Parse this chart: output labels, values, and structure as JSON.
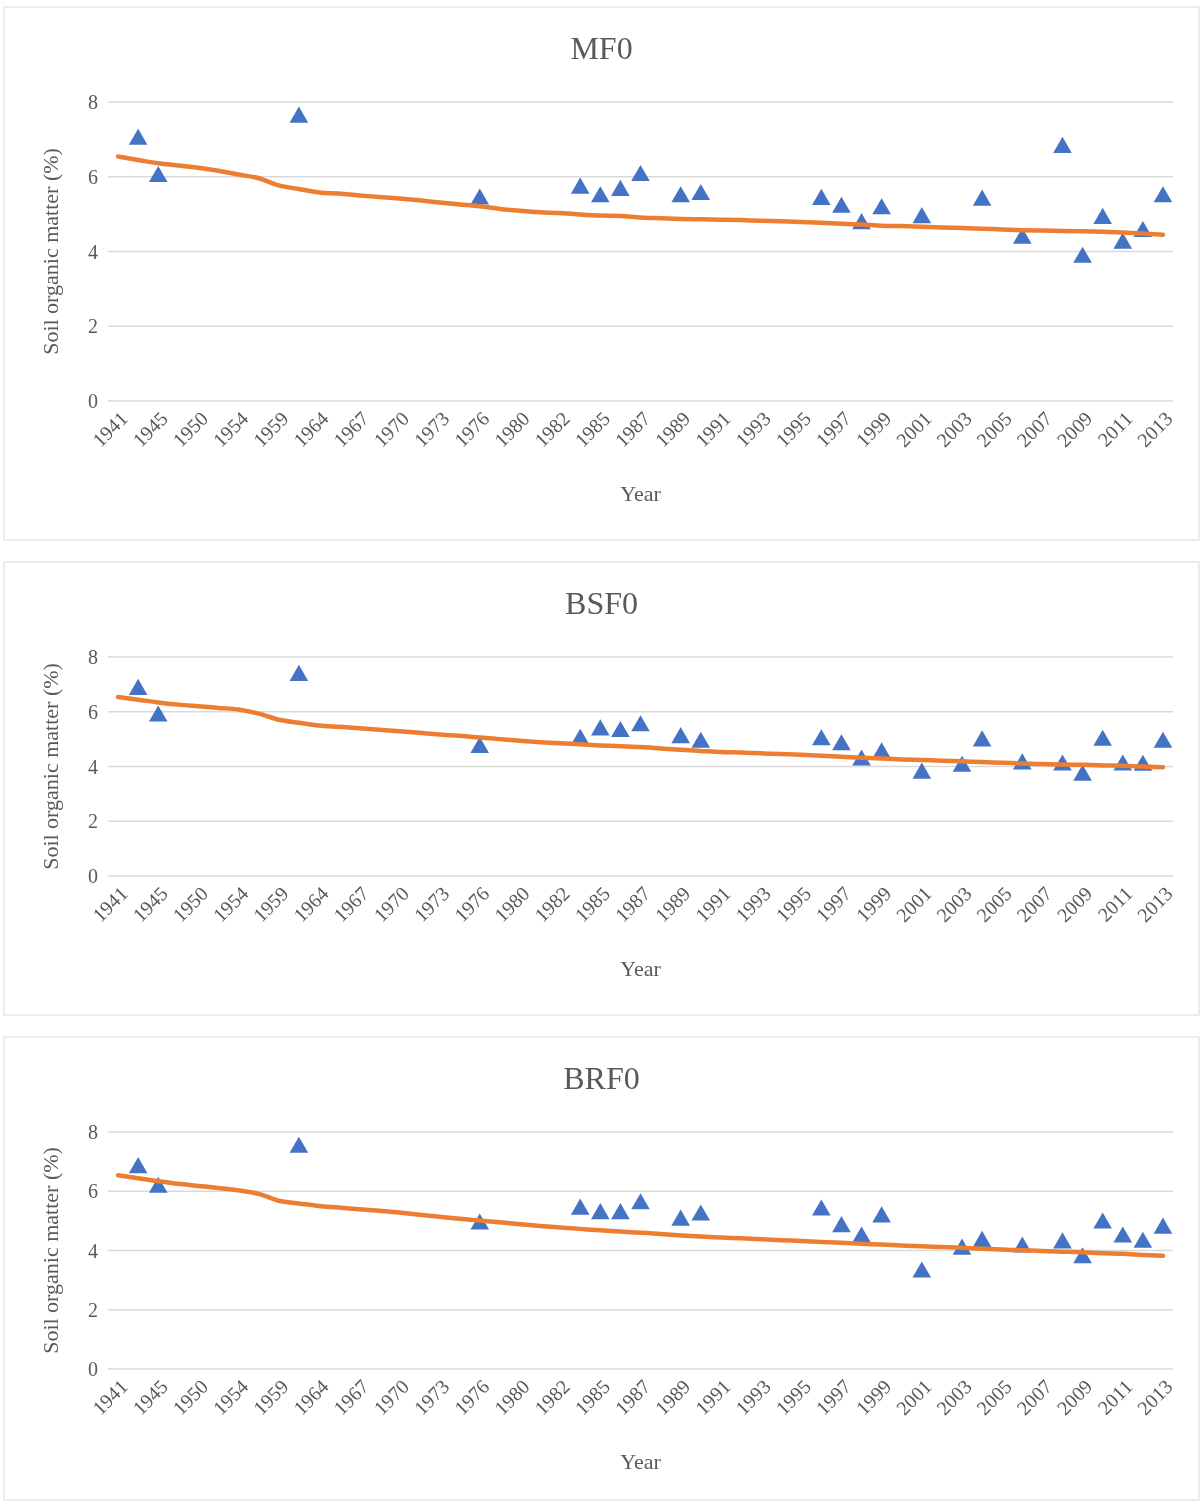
{
  "chart_data": [
    {
      "type": "line",
      "title": "MF0",
      "xlabel": "Year",
      "ylabel": "Soil organic matter (%)",
      "categories": [
        "1941",
        null,
        "1945",
        null,
        "1950",
        null,
        "1954",
        null,
        "1959",
        null,
        "1964",
        null,
        "1967",
        null,
        "1970",
        null,
        "1973",
        null,
        "1976",
        null,
        "1980",
        null,
        "1982",
        null,
        "1985",
        null,
        "1987",
        null,
        "1989",
        null,
        "1991",
        null,
        "1993",
        null,
        "1995",
        null,
        "1997",
        null,
        "1999",
        null,
        "2001",
        null,
        "2003",
        null,
        "2005",
        null,
        "2007",
        null,
        "2009",
        null,
        "2011",
        null,
        "2013"
      ],
      "ylim": [
        0,
        8
      ],
      "yticks": [
        0,
        2,
        4,
        6,
        8
      ],
      "grid": "y",
      "series": [
        {
          "color": "#ed7d31",
          "marker": "none",
          "values": [
            6.54,
            6.45,
            6.36,
            6.3,
            6.24,
            6.16,
            6.06,
            5.96,
            5.77,
            5.67,
            5.58,
            5.55,
            5.5,
            5.46,
            5.42,
            5.37,
            5.31,
            5.26,
            5.21,
            5.14,
            5.09,
            5.05,
            5.03,
            4.99,
            4.96,
            4.95,
            4.91,
            4.89,
            4.87,
            4.86,
            4.85,
            4.84,
            4.82,
            4.81,
            4.79,
            4.77,
            4.74,
            4.72,
            4.69,
            4.68,
            4.66,
            4.64,
            4.63,
            4.61,
            4.59,
            4.57,
            4.56,
            4.55,
            4.54,
            4.53,
            4.51,
            4.48,
            4.45
          ]
        },
        {
          "type": "scatter",
          "color": "#4472c4",
          "marker": "triangle",
          "values": [
            null,
            7.0,
            6.0,
            null,
            null,
            null,
            null,
            null,
            null,
            7.59,
            null,
            null,
            null,
            null,
            null,
            null,
            null,
            null,
            5.4,
            null,
            null,
            null,
            null,
            5.69,
            5.46,
            5.63,
            6.03,
            null,
            5.46,
            5.52,
            null,
            null,
            null,
            null,
            null,
            5.39,
            5.18,
            4.74,
            5.14,
            null,
            4.9,
            null,
            null,
            5.37,
            null,
            4.35,
            null,
            6.78,
            3.84,
            4.88,
            4.22,
            4.53,
            5.46
          ]
        }
      ]
    },
    {
      "type": "line",
      "title": "BSF0",
      "xlabel": "Year",
      "ylabel": "Soil organic matter (%)",
      "categories": [
        "1941",
        null,
        "1945",
        null,
        "1950",
        null,
        "1954",
        null,
        "1959",
        null,
        "1964",
        null,
        "1967",
        null,
        "1970",
        null,
        "1973",
        null,
        "1976",
        null,
        "1980",
        null,
        "1982",
        null,
        "1985",
        null,
        "1987",
        null,
        "1989",
        null,
        "1991",
        null,
        "1993",
        null,
        "1995",
        null,
        "1997",
        null,
        "1999",
        null,
        "2001",
        null,
        "2003",
        null,
        "2005",
        null,
        "2007",
        null,
        "2009",
        null,
        "2011",
        null,
        "2013"
      ],
      "ylim": [
        0,
        8
      ],
      "yticks": [
        0,
        2,
        4,
        6,
        8
      ],
      "grid": "y",
      "series": [
        {
          "color": "#ed7d31",
          "marker": "none",
          "values": [
            6.54,
            6.44,
            6.34,
            6.26,
            6.2,
            6.14,
            6.08,
            5.93,
            5.71,
            5.6,
            5.5,
            5.45,
            5.4,
            5.34,
            5.29,
            5.23,
            5.17,
            5.12,
            5.06,
            5.0,
            4.94,
            4.89,
            4.85,
            4.81,
            4.77,
            4.74,
            4.71,
            4.66,
            4.61,
            4.57,
            4.53,
            4.51,
            4.48,
            4.46,
            4.43,
            4.39,
            4.36,
            4.32,
            4.29,
            4.26,
            4.24,
            4.21,
            4.19,
            4.16,
            4.14,
            4.11,
            4.09,
            4.07,
            4.06,
            4.04,
            4.03,
            4.0,
            3.97
          ]
        },
        {
          "type": "scatter",
          "color": "#4472c4",
          "marker": "triangle",
          "values": [
            null,
            6.81,
            5.84,
            null,
            null,
            null,
            null,
            null,
            null,
            7.32,
            null,
            null,
            null,
            null,
            null,
            null,
            null,
            null,
            4.69,
            null,
            null,
            null,
            null,
            4.99,
            5.33,
            5.27,
            5.48,
            null,
            5.05,
            4.88,
            null,
            null,
            null,
            null,
            null,
            4.97,
            4.79,
            4.23,
            4.49,
            null,
            3.75,
            null,
            4.0,
            4.93,
            null,
            4.09,
            null,
            4.05,
            3.68,
            4.95,
            4.05,
            4.04,
            4.88
          ]
        }
      ]
    },
    {
      "type": "line",
      "title": "BRF0",
      "xlabel": "Year",
      "ylabel": "Soil organic matter (%)",
      "categories": [
        "1941",
        null,
        "1945",
        null,
        "1950",
        null,
        "1954",
        null,
        "1959",
        null,
        "1964",
        null,
        "1967",
        null,
        "1970",
        null,
        "1973",
        null,
        "1976",
        null,
        "1980",
        null,
        "1982",
        null,
        "1985",
        null,
        "1987",
        null,
        "1989",
        null,
        "1991",
        null,
        "1993",
        null,
        "1995",
        null,
        "1997",
        null,
        "1999",
        null,
        "2001",
        null,
        "2003",
        null,
        "2005",
        null,
        "2007",
        null,
        "2009",
        null,
        "2011",
        null,
        "2013"
      ],
      "ylim": [
        0,
        8
      ],
      "yticks": [
        0,
        2,
        4,
        6,
        8
      ],
      "grid": "y",
      "series": [
        {
          "color": "#ed7d31",
          "marker": "none",
          "values": [
            6.54,
            6.44,
            6.34,
            6.25,
            6.18,
            6.11,
            6.03,
            5.91,
            5.68,
            5.59,
            5.5,
            5.45,
            5.39,
            5.34,
            5.28,
            5.21,
            5.14,
            5.07,
            5.01,
            4.95,
            4.89,
            4.83,
            4.78,
            4.73,
            4.68,
            4.64,
            4.6,
            4.56,
            4.51,
            4.47,
            4.44,
            4.41,
            4.38,
            4.35,
            4.32,
            4.29,
            4.26,
            4.23,
            4.2,
            4.17,
            4.14,
            4.12,
            4.09,
            4.06,
            4.03,
            4.01,
            3.98,
            3.96,
            3.94,
            3.91,
            3.89,
            3.85,
            3.82
          ]
        },
        {
          "type": "scatter",
          "color": "#4472c4",
          "marker": "triangle",
          "values": [
            null,
            6.79,
            6.13,
            null,
            null,
            null,
            null,
            null,
            null,
            7.48,
            null,
            null,
            null,
            null,
            null,
            null,
            null,
            null,
            4.89,
            null,
            null,
            null,
            null,
            5.39,
            5.24,
            5.24,
            5.57,
            null,
            5.02,
            5.19,
            null,
            null,
            null,
            null,
            null,
            5.36,
            4.8,
            4.45,
            5.13,
            null,
            3.27,
            null,
            4.04,
            4.3,
            null,
            4.11,
            null,
            4.25,
            3.75,
            4.92,
            4.45,
            4.27,
            4.75
          ]
        }
      ]
    }
  ]
}
